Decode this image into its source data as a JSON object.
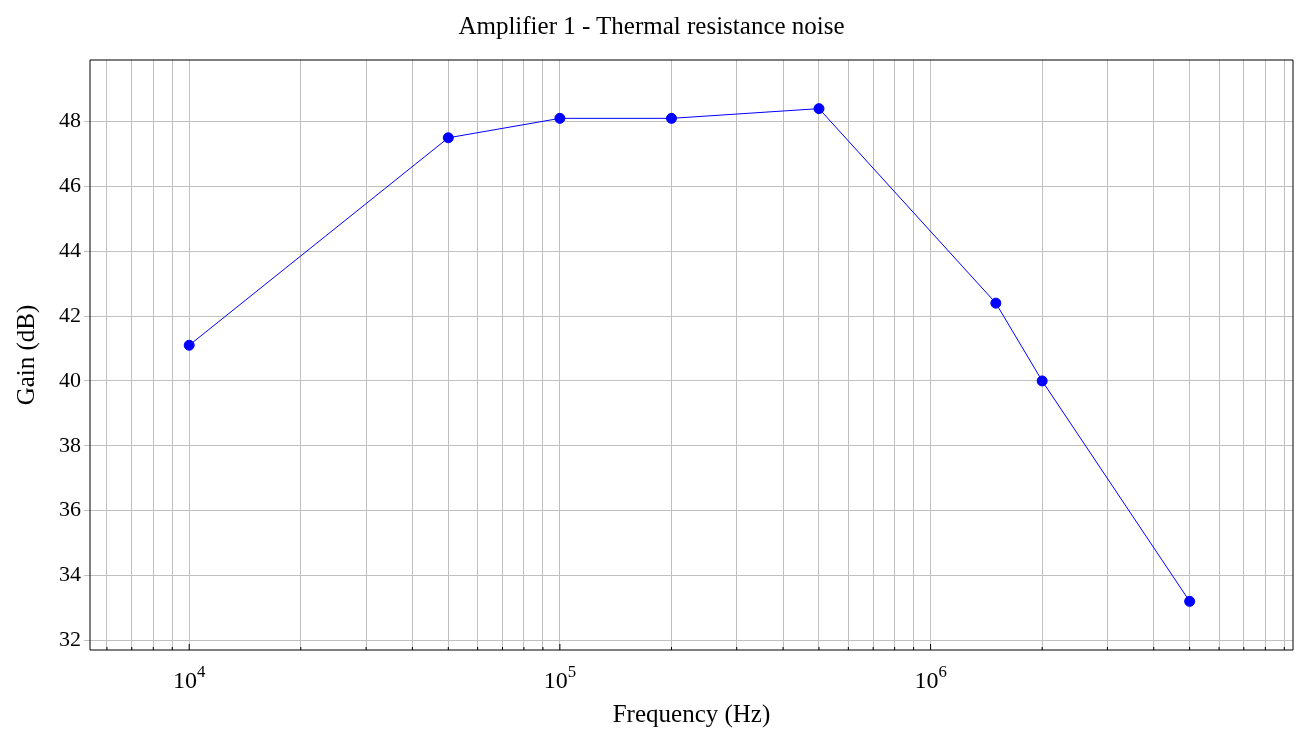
{
  "chart_data": {
    "type": "line",
    "title": "Amplifier 1 - Thermal resistance noise",
    "xlabel": "Frequency (Hz)",
    "ylabel": "Gain (dB)",
    "log": "x",
    "grid": true,
    "marker": "circle",
    "line_style": "solid",
    "x": [
      10000,
      50000,
      100000,
      200000,
      500000,
      1500000,
      2000000,
      5000000
    ],
    "series": [
      {
        "color": "#0000ff",
        "values": [
          41.1,
          47.5,
          48.1,
          48.1,
          48.4,
          42.4,
          40.0,
          33.2
        ]
      }
    ],
    "xlim": [
      5400,
      9500000
    ],
    "ylim": [
      31.7,
      49.9
    ],
    "xticks": [
      {
        "value": 6000,
        "label": null
      },
      {
        "value": 7000,
        "label": null
      },
      {
        "value": 8000,
        "label": null
      },
      {
        "value": 9000,
        "label": null
      },
      {
        "value": 10000,
        "label": "10$^{4}$"
      },
      {
        "value": 20000,
        "label": null
      },
      {
        "value": 30000,
        "label": null
      },
      {
        "value": 40000,
        "label": null
      },
      {
        "value": 50000,
        "label": null
      },
      {
        "value": 60000,
        "label": null
      },
      {
        "value": 70000,
        "label": null
      },
      {
        "value": 80000,
        "label": null
      },
      {
        "value": 90000,
        "label": null
      },
      {
        "value": 100000,
        "label": "10$^{5}$"
      },
      {
        "value": 200000,
        "label": null
      },
      {
        "value": 300000,
        "label": null
      },
      {
        "value": 400000,
        "label": null
      },
      {
        "value": 500000,
        "label": null
      },
      {
        "value": 600000,
        "label": null
      },
      {
        "value": 700000,
        "label": null
      },
      {
        "value": 800000,
        "label": null
      },
      {
        "value": 900000,
        "label": null
      },
      {
        "value": 1000000,
        "label": "10$^{6}$"
      },
      {
        "value": 2000000,
        "label": null
      },
      {
        "value": 3000000,
        "label": null
      },
      {
        "value": 4000000,
        "label": null
      },
      {
        "value": 5000000,
        "label": null
      },
      {
        "value": 6000000,
        "label": null
      },
      {
        "value": 7000000,
        "label": null
      },
      {
        "value": 8000000,
        "label": null
      },
      {
        "value": 9000000,
        "label": null
      }
    ],
    "yticks": [
      32,
      34,
      36,
      38,
      40,
      42,
      44,
      46,
      48
    ]
  }
}
